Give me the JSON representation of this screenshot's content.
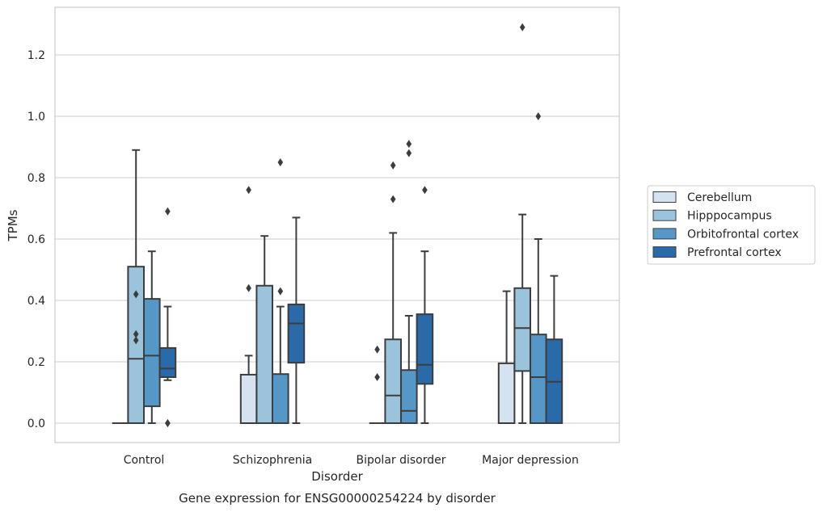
{
  "chart_data": {
    "type": "box",
    "title": "Gene expression for ENSG00000254224 by disorder",
    "xlabel": "Disorder",
    "ylabel": "TPMs",
    "ylim": [
      -0.065,
      1.36
    ],
    "yticks": [
      0.0,
      0.2,
      0.4,
      0.6,
      0.8,
      1.0,
      1.2
    ],
    "ytick_labels": [
      "0.0",
      "0.2",
      "0.4",
      "0.6",
      "0.8",
      "1.0",
      "1.2"
    ],
    "grid": "horizontal",
    "legend_position": "right",
    "categories": [
      "Control",
      "Schizophrenia",
      "Bipolar disorder",
      "Major depression"
    ],
    "series": [
      {
        "name": "Cerebellum",
        "color": "#d5e2f0",
        "boxes": [
          {
            "category": "Control",
            "whislo": 0.0,
            "q1": 0.0,
            "med": 0.0,
            "q3": 0.0,
            "whishi": 0.0,
            "fliers": []
          },
          {
            "category": "Schizophrenia",
            "whislo": 0.0,
            "q1": 0.0,
            "med": 0.0,
            "q3": 0.158,
            "whishi": 0.22,
            "fliers": [
              0.44,
              0.76
            ]
          },
          {
            "category": "Bipolar disorder",
            "whislo": 0.0,
            "q1": 0.0,
            "med": 0.0,
            "q3": 0.0,
            "whishi": 0.0,
            "fliers": [
              0.15,
              0.24
            ]
          },
          {
            "category": "Major depression",
            "whislo": 0.0,
            "q1": 0.0,
            "med": 0.0,
            "q3": 0.195,
            "whishi": 0.43,
            "fliers": []
          }
        ]
      },
      {
        "name": "Hipppocampus",
        "color": "#9ac3dc",
        "boxes": [
          {
            "category": "Control",
            "whislo": 0.0,
            "q1": 0.0,
            "med": 0.21,
            "q3": 0.51,
            "whishi": 0.89,
            "fliers": [
              0.27,
              0.29,
              0.42
            ]
          },
          {
            "category": "Schizophrenia",
            "whislo": 0.0,
            "q1": 0.0,
            "med": 0.0,
            "q3": 0.448,
            "whishi": 0.61,
            "fliers": []
          },
          {
            "category": "Bipolar disorder",
            "whislo": 0.0,
            "q1": 0.0,
            "med": 0.09,
            "q3": 0.273,
            "whishi": 0.62,
            "fliers": [
              0.73,
              0.84
            ]
          },
          {
            "category": "Major depression",
            "whislo": 0.0,
            "q1": 0.17,
            "med": 0.31,
            "q3": 0.44,
            "whishi": 0.68,
            "fliers": [
              1.29
            ]
          }
        ]
      },
      {
        "name": "Orbitofrontal cortex",
        "color": "#5597c6",
        "boxes": [
          {
            "category": "Control",
            "whislo": 0.0,
            "q1": 0.055,
            "med": 0.22,
            "q3": 0.405,
            "whishi": 0.56,
            "fliers": []
          },
          {
            "category": "Schizophrenia",
            "whislo": 0.0,
            "q1": 0.0,
            "med": 0.0,
            "q3": 0.16,
            "whishi": 0.38,
            "fliers": [
              0.43,
              0.85
            ]
          },
          {
            "category": "Bipolar disorder",
            "whislo": 0.0,
            "q1": 0.0,
            "med": 0.04,
            "q3": 0.173,
            "whishi": 0.35,
            "fliers": [
              0.88,
              0.91
            ]
          },
          {
            "category": "Major depression",
            "whislo": 0.0,
            "q1": 0.0,
            "med": 0.15,
            "q3": 0.289,
            "whishi": 0.6,
            "fliers": [
              1.0
            ]
          }
        ]
      },
      {
        "name": "Prefrontal cortex",
        "color": "#2a6aa8",
        "boxes": [
          {
            "category": "Control",
            "whislo": 0.14,
            "q1": 0.15,
            "med": 0.178,
            "q3": 0.245,
            "whishi": 0.38,
            "fliers": [
              0.0,
              0.0,
              0.69
            ]
          },
          {
            "category": "Schizophrenia",
            "whislo": 0.0,
            "q1": 0.197,
            "med": 0.325,
            "q3": 0.387,
            "whishi": 0.67,
            "fliers": []
          },
          {
            "category": "Bipolar disorder",
            "whislo": 0.0,
            "q1": 0.128,
            "med": 0.19,
            "q3": 0.355,
            "whishi": 0.56,
            "fliers": [
              0.76
            ]
          },
          {
            "category": "Major depression",
            "whislo": 0.0,
            "q1": 0.0,
            "med": 0.135,
            "q3": 0.273,
            "whishi": 0.48,
            "fliers": []
          }
        ]
      }
    ]
  }
}
